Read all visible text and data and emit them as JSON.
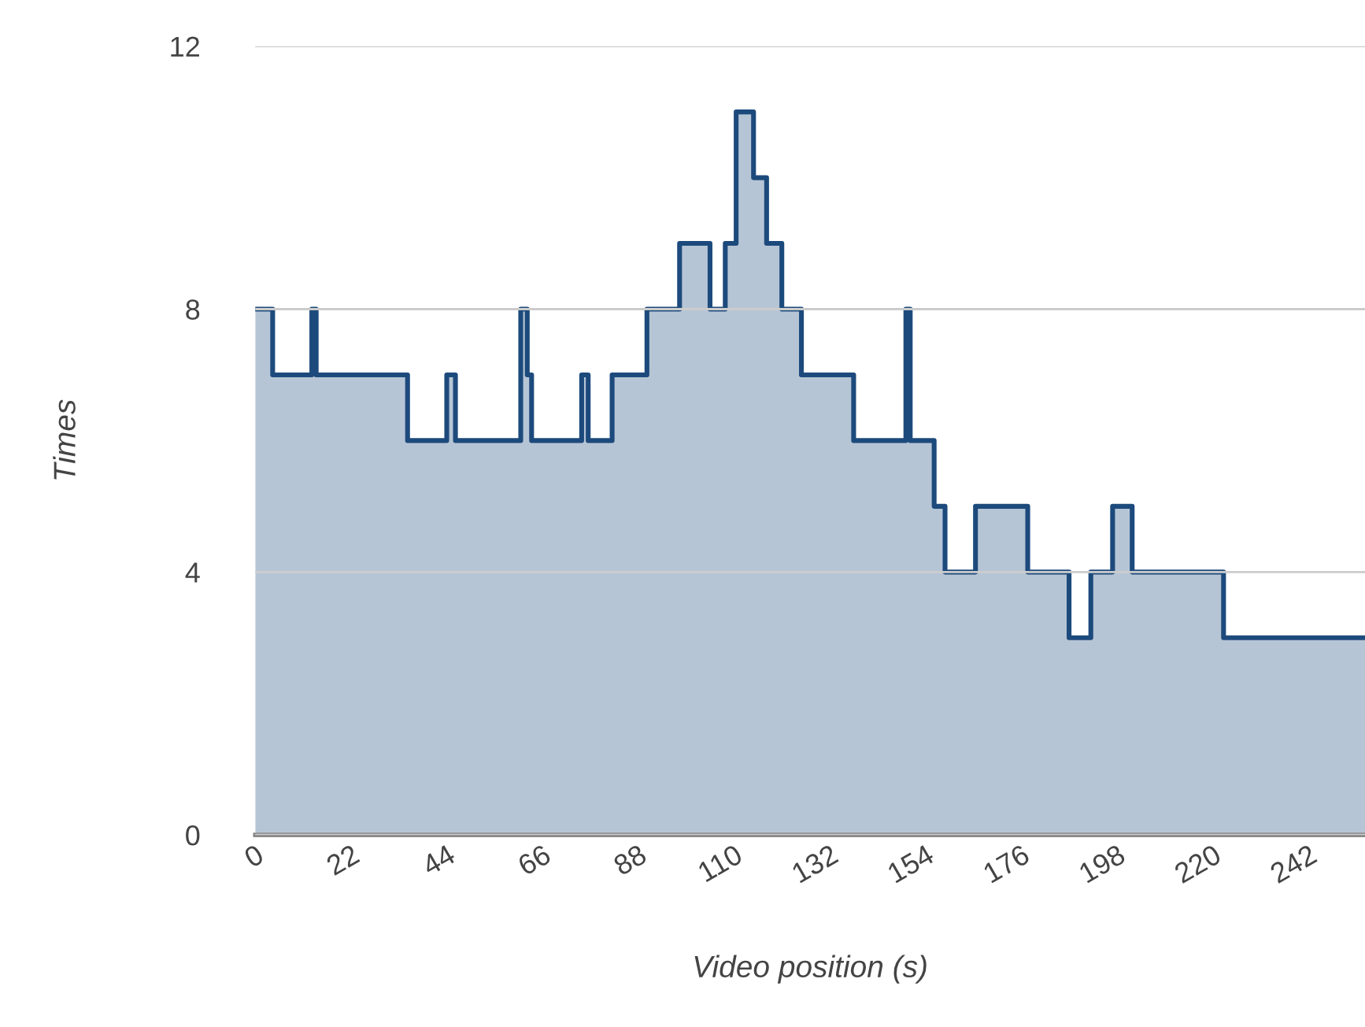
{
  "chart_data": {
    "type": "area",
    "xlabel": "Video position (s)",
    "ylabel": "Times",
    "x": [
      0,
      4,
      4,
      13,
      13,
      14,
      14,
      35,
      35,
      44,
      44,
      46,
      46,
      61,
      61,
      62.5,
      62.5,
      63.5,
      63.5,
      75,
      75,
      76.5,
      76.5,
      82,
      82,
      90,
      90,
      97.5,
      97.5,
      104.5,
      104.5,
      108,
      108,
      110.5,
      110.5,
      114.5,
      114.5,
      117.5,
      117.5,
      121,
      121,
      125.5,
      125.5,
      137.5,
      137.5,
      149.5,
      149.5,
      150.5,
      150.5,
      156,
      156,
      158.5,
      158.5,
      165.5,
      165.5,
      177.5,
      177.5,
      187,
      187,
      192,
      192,
      197,
      197,
      201.5,
      201.5,
      222.5,
      222.5,
      255
    ],
    "series": [
      {
        "color": "#1d4a7c",
        "values": [
          8,
          8,
          7,
          7,
          8,
          8,
          7,
          7,
          6,
          6,
          7,
          7,
          6,
          6,
          8,
          8,
          7,
          7,
          6,
          6,
          7,
          7,
          6,
          6,
          7,
          7,
          8,
          8,
          9,
          9,
          8,
          8,
          9,
          9,
          11,
          11,
          10,
          10,
          9,
          9,
          8,
          8,
          7,
          7,
          6,
          6,
          8,
          8,
          6,
          6,
          5,
          5,
          4,
          4,
          5,
          5,
          4,
          4,
          3,
          3,
          4,
          4,
          5,
          5,
          4,
          4,
          3,
          3
        ]
      }
    ],
    "xlim": [
      0,
      255
    ],
    "xticks": [
      0,
      22,
      44,
      66,
      88,
      110,
      132,
      154,
      176,
      198,
      220,
      242
    ],
    "ylim": [
      0,
      12
    ],
    "yticks": [
      0,
      4,
      8,
      12
    ],
    "grid": "y",
    "legend": false
  }
}
